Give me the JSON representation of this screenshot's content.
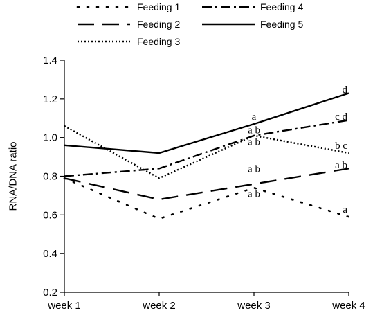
{
  "chart_data": {
    "type": "line",
    "categories": [
      "week 1",
      "week 2",
      "week 3",
      "week 4"
    ],
    "ylabel": "RNA/DNA ratio",
    "xlabel": "",
    "ylim": [
      0.2,
      1.4
    ],
    "yticks": [
      "0.2",
      "0.4",
      "0.6",
      "0.8",
      "1.0",
      "1.2",
      "1.4"
    ],
    "grid": false,
    "legend_position": "top",
    "series": [
      {
        "name": "Feeding 1",
        "style": "dotted-sparse",
        "values": [
          0.79,
          0.58,
          0.74,
          0.59
        ]
      },
      {
        "name": "Feeding 2",
        "style": "long-dash",
        "values": [
          0.79,
          0.68,
          0.76,
          0.84
        ]
      },
      {
        "name": "Feeding 3",
        "style": "dotted-dense",
        "values": [
          1.06,
          0.79,
          1.01,
          0.92
        ]
      },
      {
        "name": "Feeding 4",
        "style": "dash-dot",
        "values": [
          0.8,
          0.84,
          1.01,
          1.09
        ]
      },
      {
        "name": "Feeding 5",
        "style": "solid",
        "values": [
          0.96,
          0.92,
          1.07,
          1.23
        ]
      }
    ],
    "annotations": [
      {
        "text": "a",
        "category": "week 3",
        "y": 1.11
      },
      {
        "text": "a b",
        "category": "week 3",
        "y": 1.04
      },
      {
        "text": "a b",
        "category": "week 3",
        "y": 0.98
      },
      {
        "text": "a b",
        "category": "week 3",
        "y": 0.84
      },
      {
        "text": "a b",
        "category": "week 3",
        "y": 0.71
      },
      {
        "text": "d",
        "category": "week 4",
        "y": 1.25
      },
      {
        "text": "c d",
        "category": "week 4",
        "y": 1.11
      },
      {
        "text": "b c",
        "category": "week 4",
        "y": 0.96
      },
      {
        "text": "a b",
        "category": "week 4",
        "y": 0.86
      },
      {
        "text": "a",
        "category": "week 4",
        "y": 0.63
      }
    ]
  }
}
